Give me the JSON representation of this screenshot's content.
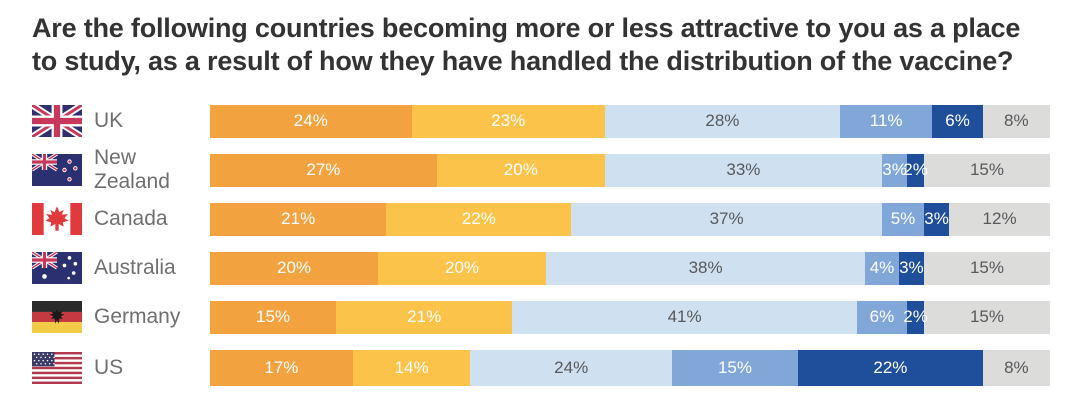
{
  "title": "Are the following countries becoming more or less attractive to you as a place to study, as a result of how they have handled the distribution of the vaccine?",
  "rows": [
    {
      "label": "UK",
      "flag": "uk"
    },
    {
      "label": "New Zealand",
      "flag": "nz"
    },
    {
      "label": "Canada",
      "flag": "ca"
    },
    {
      "label": "Australia",
      "flag": "au"
    },
    {
      "label": "Germany",
      "flag": "de"
    },
    {
      "label": "US",
      "flag": "us"
    }
  ],
  "chart_data": {
    "type": "bar",
    "variant": "horizontal-stacked",
    "title": "Are the following countries becoming more or less attractive to you as a place to study, as a result of how they have handled the distribution of the vaccine?",
    "categories": [
      "UK",
      "New Zealand",
      "Canada",
      "Australia",
      "Germany",
      "US"
    ],
    "value_suffix": "%",
    "xlim": [
      0,
      100
    ],
    "legend": "none",
    "series": [
      {
        "id": "segment-1-dark-orange",
        "color": "#F2A340",
        "label_color": "#FFFFFF",
        "values": [
          24,
          27,
          21,
          20,
          15,
          17
        ]
      },
      {
        "id": "segment-2-yellow",
        "color": "#FBC34A",
        "label_color": "#FFFFFF",
        "values": [
          23,
          20,
          22,
          20,
          21,
          14
        ]
      },
      {
        "id": "segment-3-light-blue",
        "color": "#CFE0F1",
        "label_color": "#58595B",
        "values": [
          28,
          33,
          37,
          38,
          41,
          24
        ]
      },
      {
        "id": "segment-4-medium-blue",
        "color": "#80A7D8",
        "label_color": "#FFFFFF",
        "values": [
          11,
          3,
          5,
          4,
          6,
          15
        ]
      },
      {
        "id": "segment-5-dark-blue",
        "color": "#1F4E9B",
        "label_color": "#FFFFFF",
        "values": [
          6,
          2,
          3,
          3,
          2,
          22
        ]
      },
      {
        "id": "segment-6-gray",
        "color": "#DCDCDA",
        "label_color": "#58595B",
        "values": [
          8,
          15,
          12,
          15,
          15,
          8
        ]
      }
    ]
  }
}
